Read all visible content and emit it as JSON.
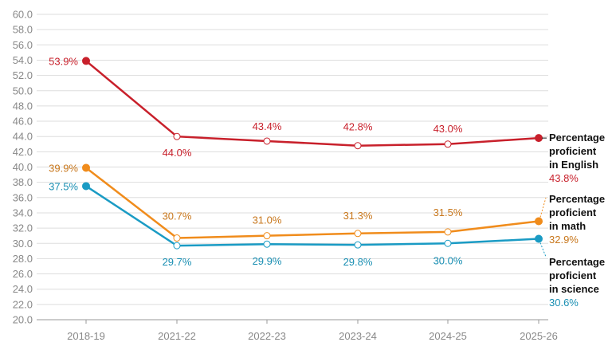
{
  "chart_data": {
    "type": "line",
    "title": "",
    "xlabel": "",
    "ylabel": "",
    "ylim": [
      20,
      60
    ],
    "y_tick_step": 2,
    "y_tick_format": "0.0",
    "grid": "horizontal",
    "x": [
      "2018-19",
      "2021-22",
      "2022-23",
      "2023-24",
      "2024-25",
      "2025-26"
    ],
    "series": [
      {
        "name_lines": [
          "Percentage",
          "proficient",
          "in English"
        ],
        "color": "#c8202b",
        "values": [
          53.9,
          44.0,
          43.4,
          42.8,
          43.0,
          43.8
        ],
        "labels": [
          "53.9%",
          "44.0%",
          "43.4%",
          "42.8%",
          "43.0%",
          "43.8%"
        ]
      },
      {
        "name_lines": [
          "Percentage",
          "proficient",
          "in math"
        ],
        "color": "#f08c1c",
        "values": [
          39.9,
          30.7,
          31.0,
          31.3,
          31.5,
          32.9
        ],
        "labels": [
          "39.9%",
          "30.7%",
          "31.0%",
          "31.3%",
          "31.5%",
          "32.9%"
        ]
      },
      {
        "name_lines": [
          "Percentage",
          "proficient",
          "in science"
        ],
        "color": "#1a9bc4",
        "values": [
          37.5,
          29.7,
          29.9,
          29.8,
          30.0,
          30.6
        ],
        "labels": [
          "37.5%",
          "29.7%",
          "29.9%",
          "29.8%",
          "30.0%",
          "30.6%"
        ]
      }
    ],
    "label_text_colors": [
      "#c8202b",
      "#c8771c",
      "#1a8fb3"
    ]
  }
}
